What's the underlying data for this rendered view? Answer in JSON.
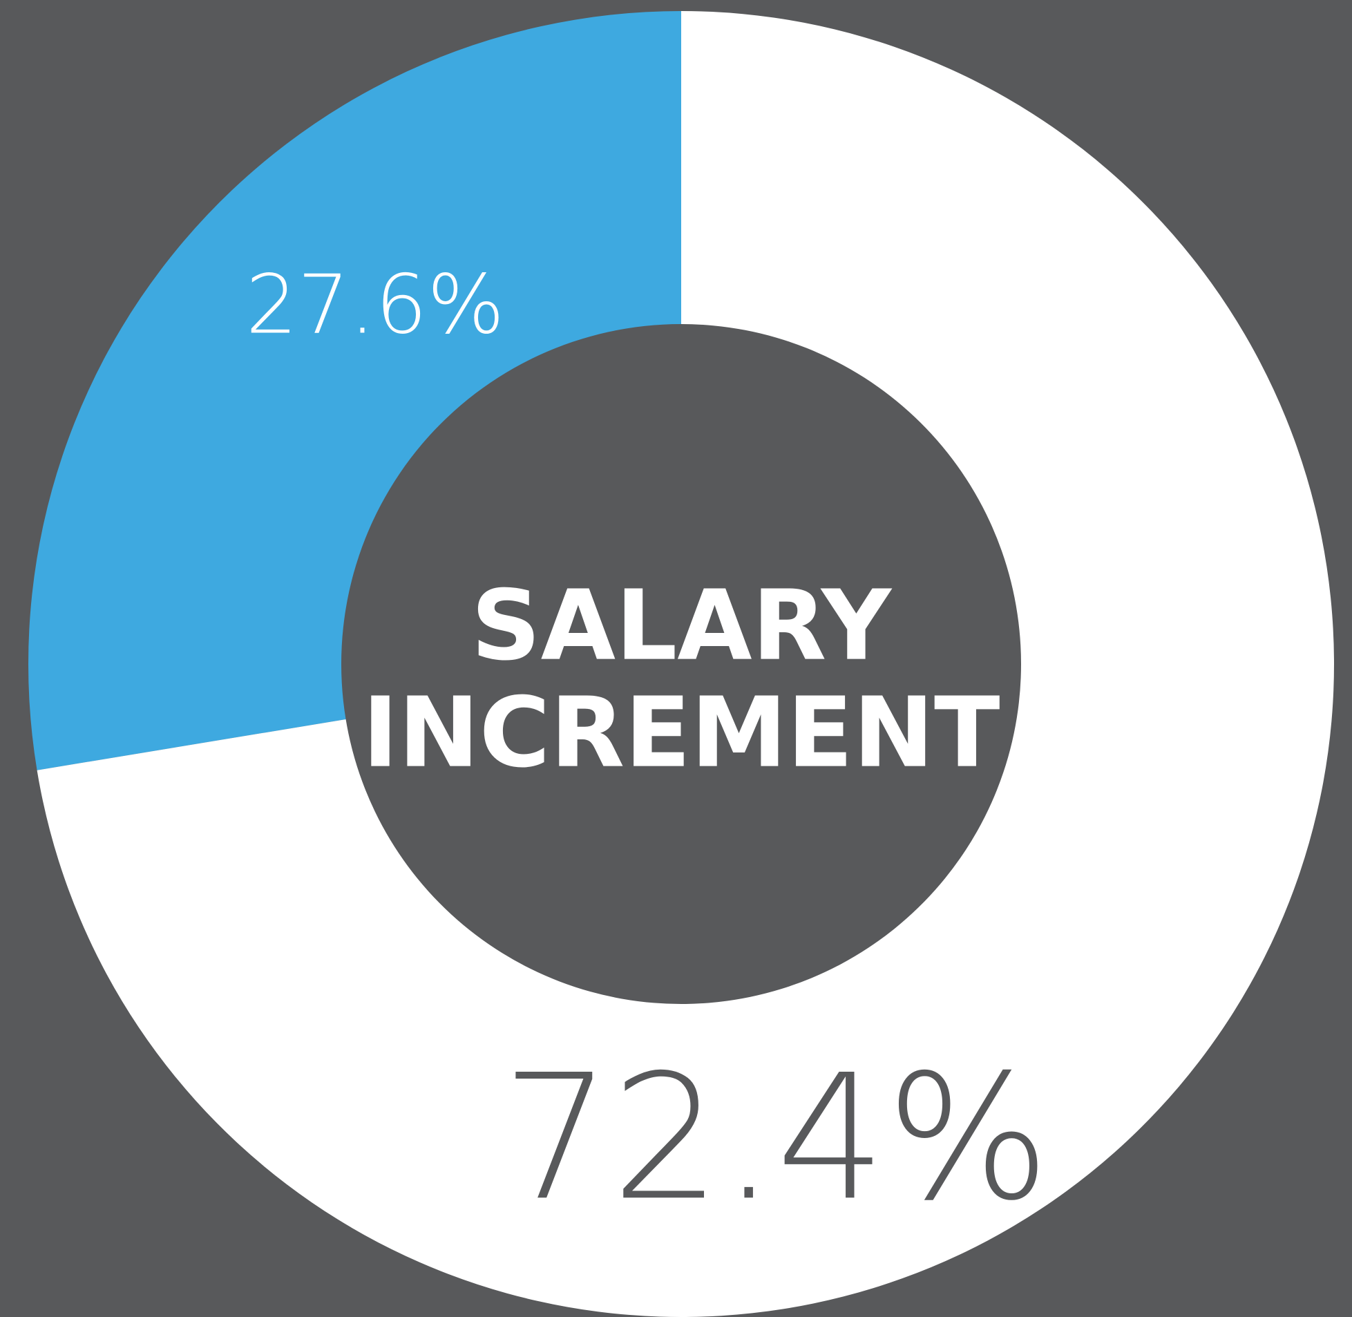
{
  "chart_data": {
    "type": "donut",
    "title": [
      "SALARY",
      "INCREMENT"
    ],
    "values": [
      27.6,
      72.4
    ],
    "value_labels": [
      "27.6%",
      "72.4%"
    ],
    "colors": [
      "#3ea9e0",
      "#ffffff"
    ],
    "label_colors": [
      "#ffffff",
      "#58595b"
    ]
  }
}
